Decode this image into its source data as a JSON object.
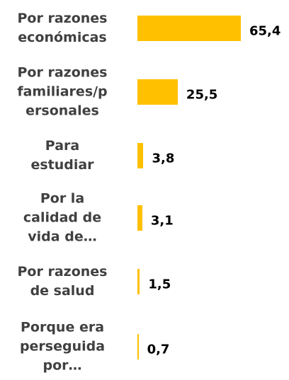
{
  "chart_data": {
    "type": "bar",
    "orientation": "horizontal",
    "categories": [
      "Por razones\neconómicas",
      "Por razones\nfamiliares/p\nersonales",
      "Para\nestudiar",
      "Por la\ncalidad de\nvida de…",
      "Por razones\nde salud",
      "Porque era\nperseguida\npor…"
    ],
    "values": [
      65.4,
      25.5,
      3.8,
      3.1,
      1.5,
      0.7
    ],
    "value_labels": [
      "65,4",
      "25,5",
      "3,8",
      "3,1",
      "1,5",
      "0,7"
    ],
    "color": "#ffc000"
  }
}
